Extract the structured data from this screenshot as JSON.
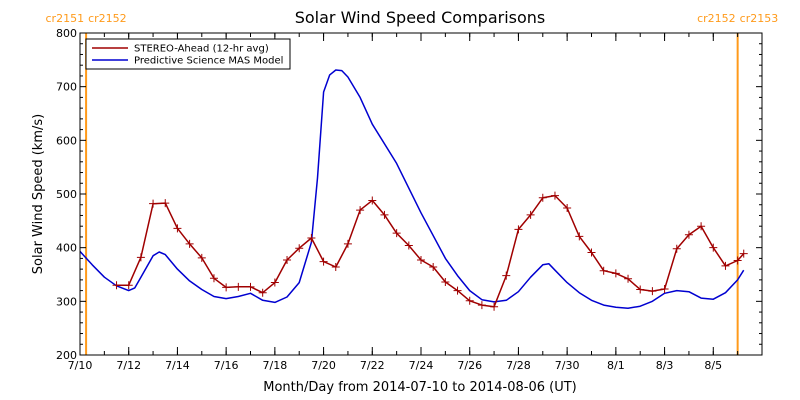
{
  "chart_data": {
    "type": "line",
    "title": "Solar Wind Speed Comparisons",
    "xlabel": "Month/Day from 2014-07-10 to 2014-08-06 (UT)",
    "ylabel": "Solar Wind Speed (km/s)",
    "ylim": [
      200,
      800
    ],
    "yticks": [
      200,
      300,
      400,
      500,
      600,
      700,
      800
    ],
    "xlim": [
      "2014-07-10",
      "2014-08-06"
    ],
    "xtick_labels": [
      {
        "date": "2014-07-10",
        "label": "7/10"
      },
      {
        "date": "2014-07-12",
        "label": "7/12"
      },
      {
        "date": "2014-07-14",
        "label": "7/14"
      },
      {
        "date": "2014-07-16",
        "label": "7/16"
      },
      {
        "date": "2014-07-18",
        "label": "7/18"
      },
      {
        "date": "2014-07-20",
        "label": "7/20"
      },
      {
        "date": "2014-07-22",
        "label": "7/22"
      },
      {
        "date": "2014-07-24",
        "label": "7/24"
      },
      {
        "date": "2014-07-26",
        "label": "7/26"
      },
      {
        "date": "2014-07-28",
        "label": "7/28"
      },
      {
        "date": "2014-07-30",
        "label": "7/30"
      },
      {
        "date": "2014-08-01",
        "label": "8/1"
      },
      {
        "date": "2014-08-03",
        "label": "8/3"
      },
      {
        "date": "2014-08-05",
        "label": "8/5"
      }
    ],
    "grid": false,
    "legend_position": "top-left",
    "carrington_markers": [
      {
        "date": "2014-07-10 06:00",
        "left_label": "cr2151",
        "right_label": "cr2152",
        "color": "#ff9a1a"
      },
      {
        "date": "2014-08-06 00:00",
        "left_label": "cr2152",
        "right_label": "cr2153",
        "color": "#ff9a1a"
      }
    ],
    "series": [
      {
        "name": "STEREO-Ahead (12-hr avg)",
        "color": "#a00000",
        "marker": "plus",
        "points": [
          [
            "2014-07-11 12:00",
            330
          ],
          [
            "2014-07-12 00:00",
            330
          ],
          [
            "2014-07-12 12:00",
            382
          ],
          [
            "2014-07-13 00:00",
            482
          ],
          [
            "2014-07-13 12:00",
            483
          ],
          [
            "2014-07-14 00:00",
            436
          ],
          [
            "2014-07-14 12:00",
            407
          ],
          [
            "2014-07-15 00:00",
            381
          ],
          [
            "2014-07-15 12:00",
            343
          ],
          [
            "2014-07-16 00:00",
            326
          ],
          [
            "2014-07-16 12:00",
            327
          ],
          [
            "2014-07-17 00:00",
            327
          ],
          [
            "2014-07-17 12:00",
            316
          ],
          [
            "2014-07-18 00:00",
            335
          ],
          [
            "2014-07-18 12:00",
            377
          ],
          [
            "2014-07-19 00:00",
            399
          ],
          [
            "2014-07-19 12:00",
            418
          ],
          [
            "2014-07-20 00:00",
            374
          ],
          [
            "2014-07-20 12:00",
            364
          ],
          [
            "2014-07-21 00:00",
            407
          ],
          [
            "2014-07-21 12:00",
            470
          ],
          [
            "2014-07-22 00:00",
            488
          ],
          [
            "2014-07-22 12:00",
            461
          ],
          [
            "2014-07-23 00:00",
            427
          ],
          [
            "2014-07-23 12:00",
            404
          ],
          [
            "2014-07-24 00:00",
            377
          ],
          [
            "2014-07-24 12:00",
            364
          ],
          [
            "2014-07-25 00:00",
            336
          ],
          [
            "2014-07-25 12:00",
            320
          ],
          [
            "2014-07-26 00:00",
            301
          ],
          [
            "2014-07-26 12:00",
            293
          ],
          [
            "2014-07-27 00:00",
            290
          ],
          [
            "2014-07-27 12:00",
            348
          ],
          [
            "2014-07-28 00:00",
            434
          ],
          [
            "2014-07-28 12:00",
            461
          ],
          [
            "2014-07-29 00:00",
            493
          ],
          [
            "2014-07-29 12:00",
            497
          ],
          [
            "2014-07-30 00:00",
            474
          ],
          [
            "2014-07-30 12:00",
            421
          ],
          [
            "2014-07-31 00:00",
            391
          ],
          [
            "2014-07-31 12:00",
            357
          ],
          [
            "2014-08-01 00:00",
            352
          ],
          [
            "2014-08-01 12:00",
            342
          ],
          [
            "2014-08-02 00:00",
            322
          ],
          [
            "2014-08-02 12:00",
            319
          ],
          [
            "2014-08-03 00:00",
            323
          ],
          [
            "2014-08-03 12:00",
            398
          ],
          [
            "2014-08-04 00:00",
            424
          ],
          [
            "2014-08-04 12:00",
            440
          ],
          [
            "2014-08-05 00:00",
            400
          ],
          [
            "2014-08-05 12:00",
            366
          ],
          [
            "2014-08-06 00:00",
            376
          ],
          [
            "2014-08-06 06:00",
            389
          ]
        ]
      },
      {
        "name": "Predictive Science MAS Model",
        "color": "#0000d0",
        "marker": "none",
        "points": [
          [
            "2014-07-10 00:00",
            393
          ],
          [
            "2014-07-10 12:00",
            368
          ],
          [
            "2014-07-11 00:00",
            345
          ],
          [
            "2014-07-11 12:00",
            329
          ],
          [
            "2014-07-12 00:00",
            320
          ],
          [
            "2014-07-12 06:00",
            325
          ],
          [
            "2014-07-12 12:00",
            345
          ],
          [
            "2014-07-13 00:00",
            385
          ],
          [
            "2014-07-13 06:00",
            392
          ],
          [
            "2014-07-13 12:00",
            387
          ],
          [
            "2014-07-14 00:00",
            360
          ],
          [
            "2014-07-14 12:00",
            338
          ],
          [
            "2014-07-15 00:00",
            322
          ],
          [
            "2014-07-15 12:00",
            309
          ],
          [
            "2014-07-16 00:00",
            305
          ],
          [
            "2014-07-16 12:00",
            309
          ],
          [
            "2014-07-17 00:00",
            315
          ],
          [
            "2014-07-17 12:00",
            302
          ],
          [
            "2014-07-18 00:00",
            298
          ],
          [
            "2014-07-18 12:00",
            308
          ],
          [
            "2014-07-19 00:00",
            335
          ],
          [
            "2014-07-19 12:00",
            410
          ],
          [
            "2014-07-19 18:00",
            530
          ],
          [
            "2014-07-20 00:00",
            690
          ],
          [
            "2014-07-20 06:00",
            722
          ],
          [
            "2014-07-20 12:00",
            731
          ],
          [
            "2014-07-20 18:00",
            730
          ],
          [
            "2014-07-21 00:00",
            718
          ],
          [
            "2014-07-21 12:00",
            680
          ],
          [
            "2014-07-22 00:00",
            630
          ],
          [
            "2014-07-23 00:00",
            557
          ],
          [
            "2014-07-24 00:00",
            465
          ],
          [
            "2014-07-25 00:00",
            380
          ],
          [
            "2014-07-25 12:00",
            348
          ],
          [
            "2014-07-26 00:00",
            320
          ],
          [
            "2014-07-26 12:00",
            303
          ],
          [
            "2014-07-27 00:00",
            299
          ],
          [
            "2014-07-27 12:00",
            302
          ],
          [
            "2014-07-28 00:00",
            318
          ],
          [
            "2014-07-28 12:00",
            345
          ],
          [
            "2014-07-29 00:00",
            368
          ],
          [
            "2014-07-29 06:00",
            370
          ],
          [
            "2014-07-29 12:00",
            358
          ],
          [
            "2014-07-30 00:00",
            335
          ],
          [
            "2014-07-30 12:00",
            316
          ],
          [
            "2014-07-31 00:00",
            302
          ],
          [
            "2014-07-31 12:00",
            293
          ],
          [
            "2014-08-01 00:00",
            289
          ],
          [
            "2014-08-01 12:00",
            287
          ],
          [
            "2014-08-02 00:00",
            291
          ],
          [
            "2014-08-02 12:00",
            300
          ],
          [
            "2014-08-03 00:00",
            315
          ],
          [
            "2014-08-03 12:00",
            320
          ],
          [
            "2014-08-04 00:00",
            318
          ],
          [
            "2014-08-04 12:00",
            306
          ],
          [
            "2014-08-05 00:00",
            304
          ],
          [
            "2014-08-05 12:00",
            316
          ],
          [
            "2014-08-06 00:00",
            340
          ],
          [
            "2014-08-06 06:00",
            358
          ]
        ]
      }
    ]
  }
}
